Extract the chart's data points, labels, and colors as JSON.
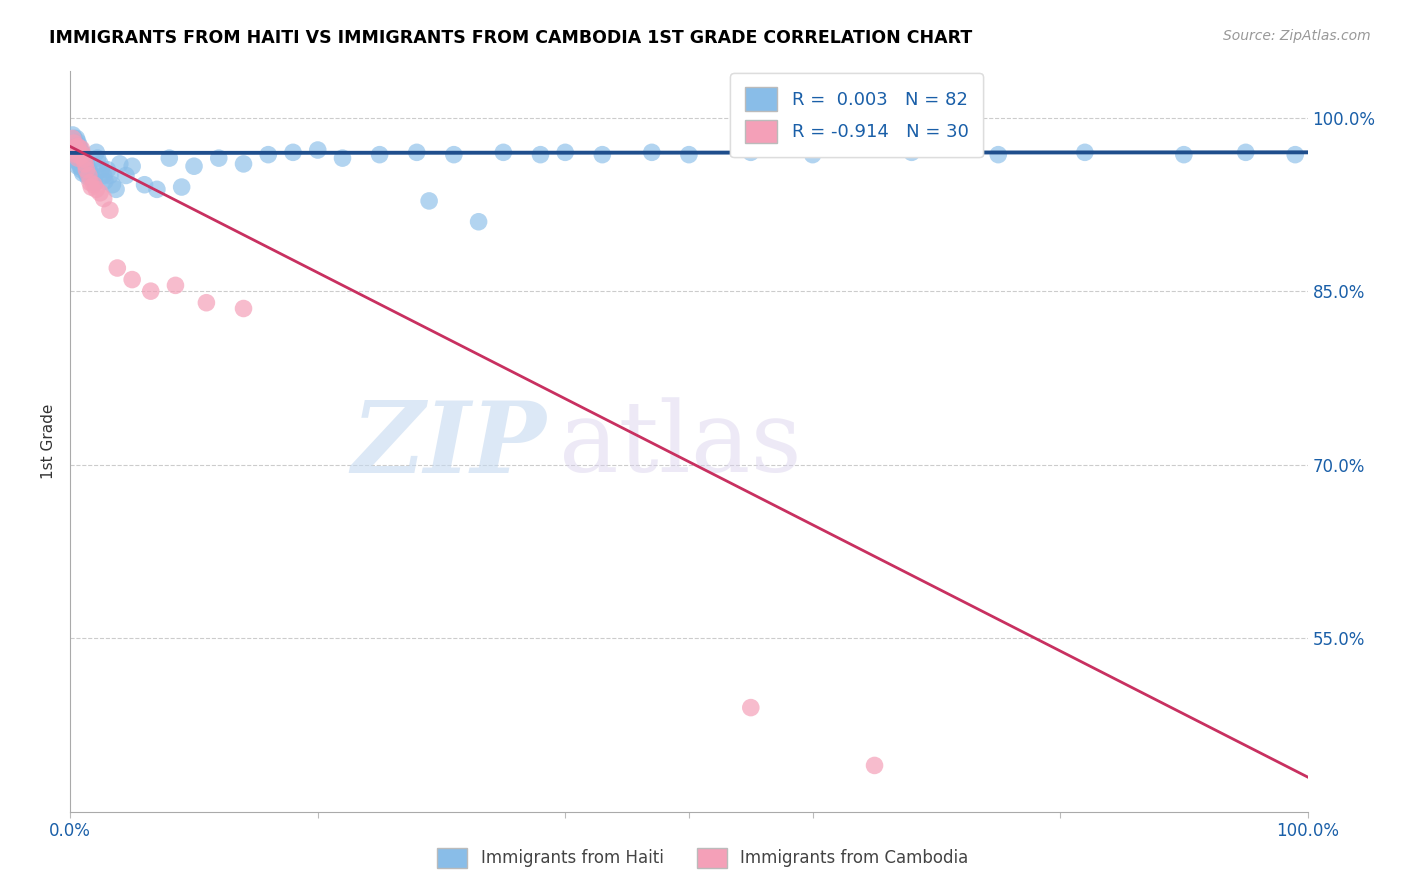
{
  "title": "IMMIGRANTS FROM HAITI VS IMMIGRANTS FROM CAMBODIA 1ST GRADE CORRELATION CHART",
  "source": "Source: ZipAtlas.com",
  "ylabel": "1st Grade",
  "haiti_color": "#89bde8",
  "cambodia_color": "#f4a0b8",
  "haiti_line_color": "#1f4e8c",
  "cambodia_line_color": "#c83060",
  "xlim": [
    0.0,
    1.0
  ],
  "ylim": [
    0.4,
    1.04
  ],
  "ytick_values": [
    0.55,
    0.7,
    0.85,
    1.0
  ],
  "ytick_labels": [
    "55.0%",
    "70.0%",
    "85.0%",
    "100.0%"
  ],
  "haiti_line_y_start": 0.9695,
  "haiti_line_y_end": 0.97,
  "cambodia_line_y_start": 0.975,
  "cambodia_line_y_end": 0.43,
  "haiti_x": [
    0.002,
    0.003,
    0.003,
    0.004,
    0.004,
    0.004,
    0.005,
    0.005,
    0.005,
    0.006,
    0.006,
    0.006,
    0.006,
    0.007,
    0.007,
    0.007,
    0.008,
    0.008,
    0.008,
    0.009,
    0.009,
    0.009,
    0.01,
    0.01,
    0.01,
    0.011,
    0.011,
    0.012,
    0.012,
    0.013,
    0.013,
    0.014,
    0.014,
    0.015,
    0.016,
    0.017,
    0.018,
    0.019,
    0.02,
    0.021,
    0.022,
    0.024,
    0.025,
    0.027,
    0.028,
    0.03,
    0.032,
    0.034,
    0.037,
    0.04,
    0.045,
    0.05,
    0.06,
    0.07,
    0.08,
    0.09,
    0.1,
    0.12,
    0.14,
    0.16,
    0.18,
    0.2,
    0.22,
    0.25,
    0.28,
    0.31,
    0.35,
    0.38,
    0.4,
    0.43,
    0.47,
    0.5,
    0.55,
    0.6,
    0.68,
    0.75,
    0.82,
    0.9,
    0.95,
    0.99,
    0.29,
    0.33
  ],
  "haiti_y": [
    0.985,
    0.982,
    0.975,
    0.978,
    0.97,
    0.963,
    0.982,
    0.975,
    0.968,
    0.979,
    0.972,
    0.965,
    0.958,
    0.976,
    0.968,
    0.961,
    0.973,
    0.965,
    0.958,
    0.97,
    0.962,
    0.955,
    0.967,
    0.959,
    0.952,
    0.965,
    0.957,
    0.962,
    0.955,
    0.96,
    0.952,
    0.957,
    0.949,
    0.955,
    0.953,
    0.95,
    0.948,
    0.946,
    0.944,
    0.97,
    0.965,
    0.96,
    0.955,
    0.95,
    0.945,
    0.955,
    0.95,
    0.942,
    0.938,
    0.96,
    0.95,
    0.958,
    0.942,
    0.938,
    0.965,
    0.94,
    0.958,
    0.965,
    0.96,
    0.968,
    0.97,
    0.972,
    0.965,
    0.968,
    0.97,
    0.968,
    0.97,
    0.968,
    0.97,
    0.968,
    0.97,
    0.968,
    0.97,
    0.968,
    0.97,
    0.968,
    0.97,
    0.968,
    0.97,
    0.968,
    0.928,
    0.91
  ],
  "cambodia_x": [
    0.002,
    0.003,
    0.003,
    0.004,
    0.005,
    0.006,
    0.006,
    0.007,
    0.008,
    0.009,
    0.01,
    0.011,
    0.012,
    0.013,
    0.015,
    0.016,
    0.017,
    0.019,
    0.021,
    0.024,
    0.027,
    0.032,
    0.038,
    0.05,
    0.065,
    0.085,
    0.11,
    0.14,
    0.55,
    0.65
  ],
  "cambodia_y": [
    0.982,
    0.978,
    0.971,
    0.974,
    0.968,
    0.975,
    0.965,
    0.971,
    0.967,
    0.973,
    0.968,
    0.964,
    0.96,
    0.955,
    0.95,
    0.944,
    0.94,
    0.942,
    0.938,
    0.935,
    0.93,
    0.92,
    0.87,
    0.86,
    0.85,
    0.855,
    0.84,
    0.835,
    0.49,
    0.44
  ]
}
